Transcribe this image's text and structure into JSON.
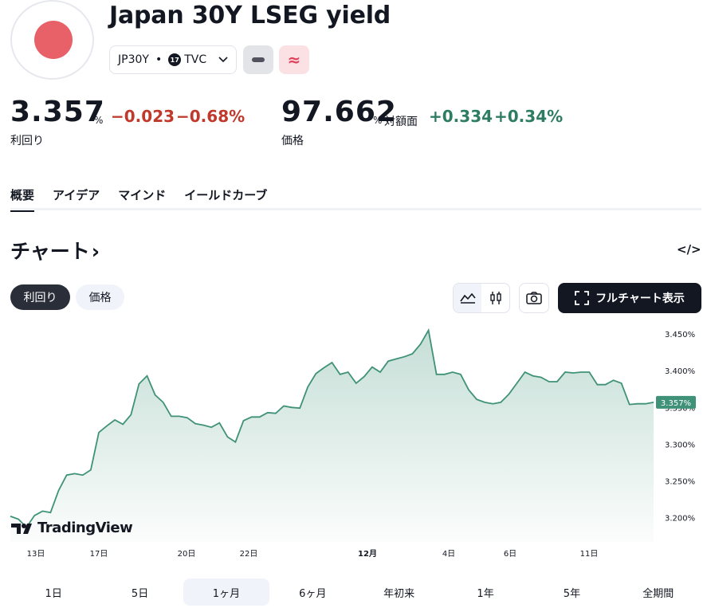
{
  "header": {
    "title": "Japan 30Y LSEG yield",
    "symbol": "JP30Y",
    "separator": "•",
    "exchange": "TVC",
    "tv_badge": "17"
  },
  "quotes": {
    "yield": {
      "value": "3.357",
      "unit": "%",
      "change": "−0.023",
      "change_pct": "−0.68%",
      "label": "利回り"
    },
    "price": {
      "value": "97.662",
      "unit": "%",
      "unit_label": "対額面",
      "change": "+0.334",
      "change_pct": "+0.34%",
      "label": "価格"
    }
  },
  "tabs": [
    "概要",
    "アイデア",
    "マインド",
    "イールドカーブ"
  ],
  "section": {
    "title": "チャート",
    "arrow": "›",
    "embed": "</>"
  },
  "toggles": {
    "yield": "利回り",
    "price": "価格"
  },
  "toolbar": {
    "full_chart": "フルチャート表示"
  },
  "brand": {
    "name": "TradingView"
  },
  "colors": {
    "line": "#3f9278",
    "accent_neg": "#c0392b",
    "accent_pos": "#2e7d62",
    "last_badge": "#3f9278"
  },
  "chart_data": {
    "type": "area",
    "ylim": [
      3.178,
      3.462
    ],
    "y_ticks": [
      "3.450%",
      "3.400%",
      "3.350%",
      "3.300%",
      "3.250%",
      "3.200%"
    ],
    "x_ticks": [
      "13日",
      "17日",
      "20日",
      "22日",
      "12月",
      "4日",
      "6日",
      "11日"
    ],
    "last_value_label": "3.357%",
    "x": [
      0,
      3,
      6,
      9,
      12,
      15,
      18,
      21,
      24,
      27,
      30,
      33,
      36,
      39,
      42,
      45,
      48,
      51,
      54,
      57,
      60,
      63,
      66,
      69,
      72,
      75,
      78,
      81,
      84,
      87,
      90,
      93,
      96,
      99,
      102,
      105,
      108,
      111,
      114,
      117,
      120,
      123,
      126,
      129,
      132,
      135,
      138,
      141,
      144,
      147,
      150,
      153,
      156,
      159,
      162,
      165,
      168,
      171,
      174,
      177,
      180,
      183,
      186,
      189,
      192,
      195,
      198,
      201,
      204,
      207,
      210,
      213,
      216,
      219,
      222,
      225,
      228,
      231,
      234,
      237,
      240
    ],
    "values": [
      3.202,
      3.198,
      3.187,
      3.203,
      3.209,
      3.207,
      3.237,
      3.258,
      3.26,
      3.258,
      3.265,
      3.316,
      3.325,
      3.333,
      3.327,
      3.34,
      3.382,
      3.393,
      3.367,
      3.357,
      3.338,
      3.338,
      3.336,
      3.328,
      3.326,
      3.323,
      3.329,
      3.31,
      3.303,
      3.332,
      3.337,
      3.337,
      3.343,
      3.342,
      3.352,
      3.35,
      3.349,
      3.378,
      3.396,
      3.404,
      3.411,
      3.395,
      3.398,
      3.383,
      3.392,
      3.405,
      3.398,
      3.413,
      3.416,
      3.419,
      3.423,
      3.436,
      3.455,
      3.395,
      3.395,
      3.398,
      3.395,
      3.374,
      3.361,
      3.357,
      3.355,
      3.357,
      3.368,
      3.383,
      3.398,
      3.393,
      3.391,
      3.385,
      3.385,
      3.398,
      3.397,
      3.398,
      3.398,
      3.381,
      3.381,
      3.387,
      3.383,
      3.354,
      3.355,
      3.355,
      3.357
    ]
  },
  "ranges": [
    "1日",
    "5日",
    "1ヶ月",
    "6ヶ月",
    "年初来",
    "1年",
    "5年",
    "全期間"
  ],
  "active_range": "1ヶ月"
}
